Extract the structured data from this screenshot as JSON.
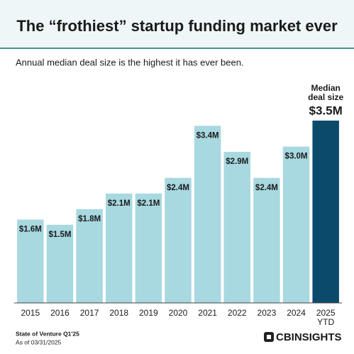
{
  "chart_data": {
    "type": "bar",
    "title": "The “frothiest” startup funding market ever",
    "subtitle": "Annual median deal size is the highest it has ever been.",
    "categories": [
      "2015",
      "2016",
      "2017",
      "2018",
      "2019",
      "2020",
      "2021",
      "2022",
      "2023",
      "2024",
      "2025 YTD"
    ],
    "values": [
      1.6,
      1.5,
      1.8,
      2.1,
      2.1,
      2.4,
      3.4,
      2.9,
      2.4,
      3.0,
      3.5
    ],
    "value_labels": [
      "$1.6M",
      "$1.5M",
      "$1.8M",
      "$2.1M",
      "$2.1M",
      "$2.4M",
      "$3.4M",
      "$2.9M",
      "$2.4M",
      "$3.0M",
      "$3.5M"
    ],
    "colors": [
      "#a8d8e0",
      "#a8d8e0",
      "#a8d8e0",
      "#a8d8e0",
      "#a8d8e0",
      "#a8d8e0",
      "#a8d8e0",
      "#a8d8e0",
      "#a8d8e0",
      "#a8d8e0",
      "#0b4a6b"
    ],
    "annotation": "Median deal size",
    "source": "State of Venture Q1'25",
    "date_note": "As of 03/31/2025",
    "logo": "CBINSIGHTS"
  }
}
